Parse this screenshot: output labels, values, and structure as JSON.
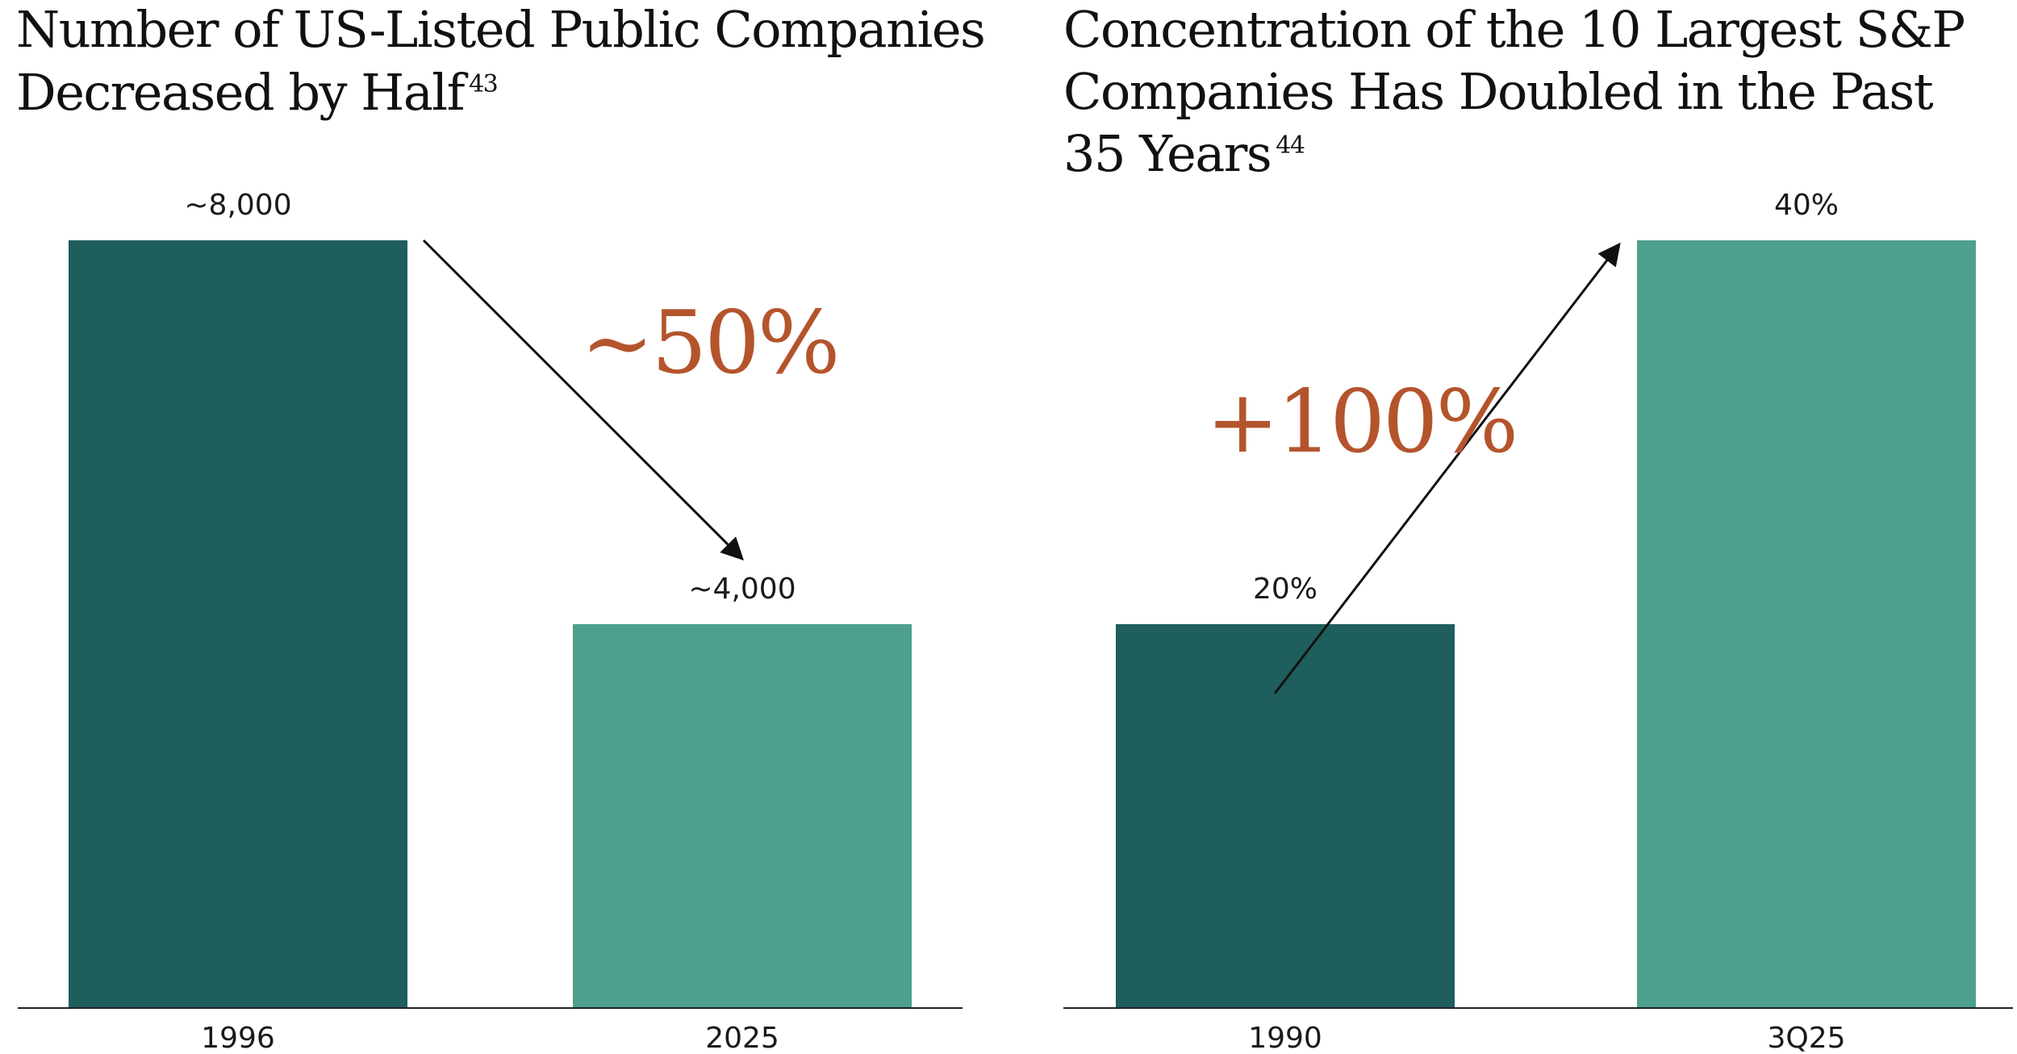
{
  "colors": {
    "dark_bar": "#1e5e5c",
    "light_bar": "#4da08c",
    "accent": "#b4542c",
    "axis": "#222222",
    "arrow": "#111111"
  },
  "chart_data": [
    {
      "type": "bar",
      "title_lines": [
        "Number of US-Listed Public Companies",
        "Decreased by Half"
      ],
      "footnote": "43",
      "categories": [
        "1996",
        "2025"
      ],
      "values": [
        8000,
        4000
      ],
      "value_labels": [
        "~8,000",
        "~4,000"
      ],
      "change_label": "~50%",
      "ylim": [
        0,
        8000
      ],
      "grid": false,
      "legend": "none"
    },
    {
      "type": "bar",
      "title_lines": [
        "Concentration of the 10 Largest S&P",
        "Companies Has Doubled in the Past",
        "35 Years"
      ],
      "footnote": "44",
      "categories": [
        "1990",
        "3Q25"
      ],
      "values": [
        20,
        40
      ],
      "value_labels": [
        "20%",
        "40%"
      ],
      "change_label": "+100%",
      "ylim": [
        0,
        40
      ],
      "grid": false,
      "legend": "none"
    }
  ]
}
